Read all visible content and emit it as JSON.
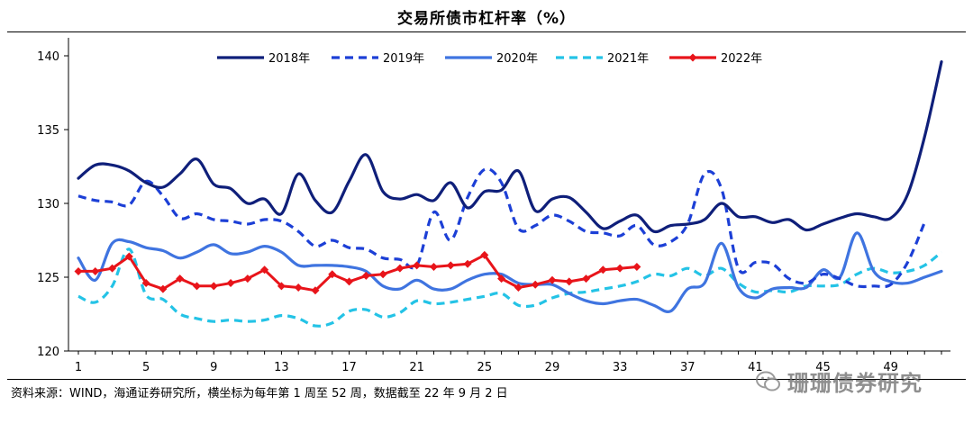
{
  "chart_data": {
    "type": "line",
    "title": "交易所债市杠杆率（%）",
    "xlabel": "",
    "ylabel": "",
    "ylim": [
      120,
      140
    ],
    "yticks": [
      120,
      125,
      130,
      135,
      140
    ],
    "xlim": [
      1,
      52
    ],
    "xticks": [
      1,
      5,
      9,
      13,
      17,
      21,
      25,
      29,
      33,
      37,
      41,
      45,
      49
    ],
    "legend_position": "top",
    "series": [
      {
        "name": "2018年",
        "color": "#0f1f7a",
        "style": "solid",
        "values": [
          131.7,
          132.6,
          132.6,
          132.2,
          131.4,
          131.1,
          132.0,
          133.0,
          131.3,
          131.0,
          130.0,
          130.3,
          129.3,
          132.0,
          130.2,
          129.4,
          131.5,
          133.3,
          130.8,
          130.3,
          130.6,
          130.2,
          131.4,
          129.7,
          130.8,
          130.9,
          132.2,
          129.5,
          130.3,
          130.4,
          129.4,
          128.3,
          128.8,
          129.2,
          128.1,
          128.5,
          128.6,
          128.9,
          130.0,
          129.1,
          129.1,
          128.7,
          128.9,
          128.2,
          128.6,
          129.0,
          129.3,
          129.1,
          129.0,
          130.6,
          134.5,
          139.6
        ]
      },
      {
        "name": "2019年",
        "color": "#1c3fd6",
        "style": "dash",
        "values": [
          130.5,
          130.2,
          130.1,
          129.9,
          131.5,
          130.5,
          129.0,
          129.3,
          128.9,
          128.8,
          128.6,
          128.9,
          128.8,
          128.1,
          127.1,
          127.5,
          127.0,
          126.9,
          126.3,
          126.2,
          125.8,
          129.4,
          127.5,
          130.4,
          132.3,
          131.4,
          128.3,
          128.5,
          129.2,
          128.8,
          128.1,
          128.0,
          127.8,
          128.5,
          127.2,
          127.4,
          128.6,
          132.0,
          131.0,
          125.6,
          126.0,
          125.9,
          124.9,
          124.6,
          125.2,
          124.9,
          124.4,
          124.4,
          124.5,
          126.0,
          128.7
        ]
      },
      {
        "name": "2020年",
        "color": "#3f74e0",
        "style": "solid",
        "values": [
          126.3,
          124.8,
          127.3,
          127.4,
          127.0,
          126.8,
          126.3,
          126.7,
          127.2,
          126.6,
          126.7,
          127.1,
          126.7,
          125.8,
          125.8,
          125.8,
          125.7,
          125.4,
          124.4,
          124.2,
          124.8,
          124.2,
          124.2,
          124.8,
          125.2,
          125.2,
          124.6,
          124.5,
          124.5,
          123.9,
          123.4,
          123.2,
          123.4,
          123.5,
          123.1,
          122.7,
          124.2,
          124.6,
          127.3,
          124.3,
          123.6,
          124.2,
          124.3,
          124.3,
          125.5,
          125.0,
          128.0,
          125.4,
          124.7,
          124.6,
          125.0,
          125.4
        ]
      },
      {
        "name": "2021年",
        "color": "#24c3e6",
        "style": "dash",
        "values": [
          123.7,
          123.3,
          124.4,
          126.9,
          123.8,
          123.5,
          122.5,
          122.2,
          122.0,
          122.1,
          122.0,
          122.1,
          122.4,
          122.2,
          121.7,
          121.9,
          122.7,
          122.8,
          122.3,
          122.6,
          123.4,
          123.2,
          123.3,
          123.5,
          123.7,
          123.9,
          123.1,
          123.1,
          123.6,
          123.9,
          124.0,
          124.2,
          124.4,
          124.7,
          125.2,
          125.1,
          125.6,
          125.1,
          125.6,
          124.6,
          124.0,
          124.1,
          124.0,
          124.4,
          124.4,
          124.5,
          125.2,
          125.6,
          125.3,
          125.4,
          125.8,
          126.7
        ]
      },
      {
        "name": "2022年",
        "color": "#e8141a",
        "style": "solid-marker",
        "values": [
          125.4,
          125.4,
          125.6,
          126.4,
          124.6,
          124.2,
          124.9,
          124.4,
          124.4,
          124.6,
          124.9,
          125.5,
          124.4,
          124.3,
          124.1,
          125.2,
          124.7,
          125.1,
          125.2,
          125.6,
          125.8,
          125.7,
          125.8,
          125.9,
          126.5,
          124.9,
          124.3,
          124.5,
          124.8,
          124.7,
          124.9,
          125.5,
          125.6,
          125.7
        ]
      }
    ]
  },
  "footer": {
    "source_text": "资料来源：WIND，海通证券研究所，横坐标为每年第 1 周至 52 周，数据截至 22 年 9 月 2 日",
    "watermark_text": "珊珊债券研究"
  }
}
